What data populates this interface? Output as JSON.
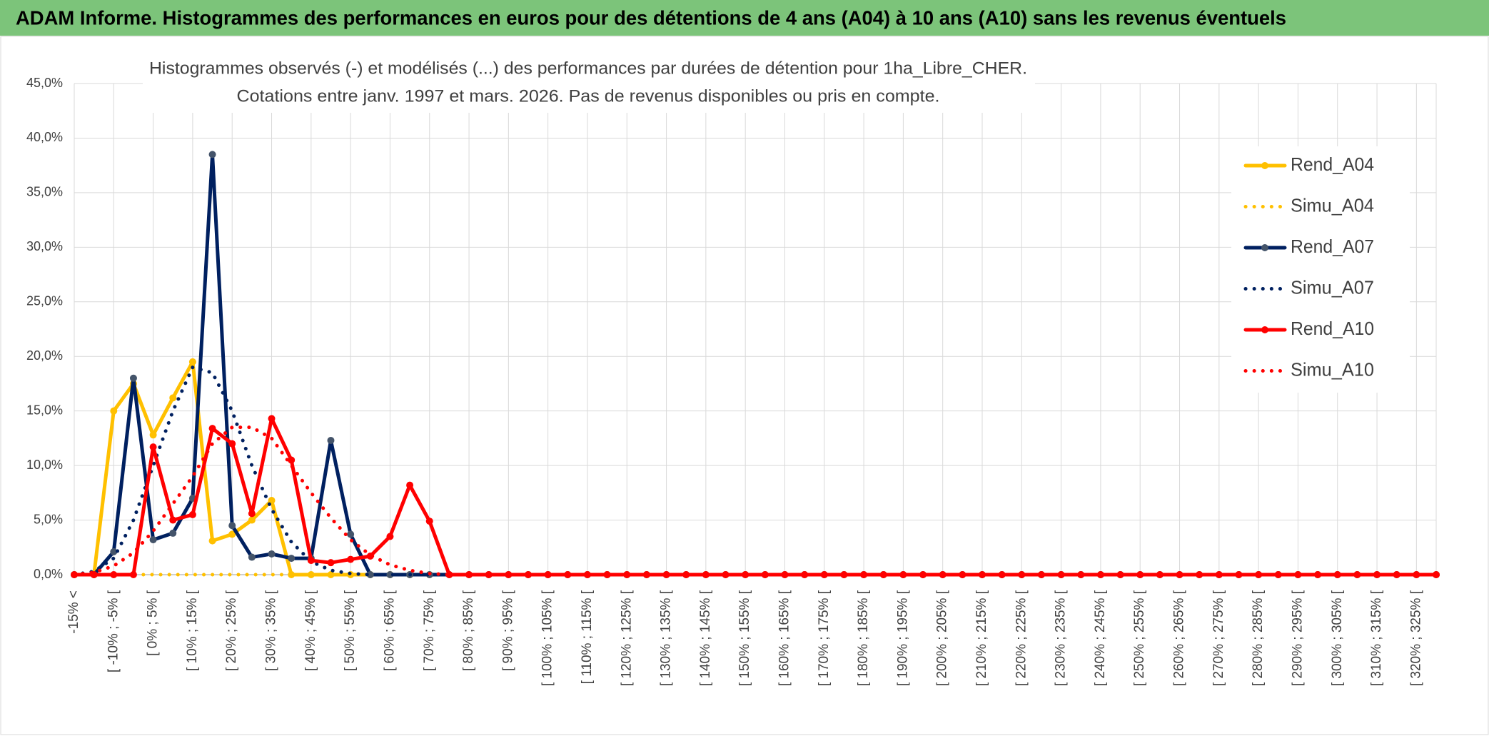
{
  "header": {
    "title": "ADAM Informe. Histogrammes des performances en euros pour des détentions de 4 ans (A04) à 10 ans (A10) sans les revenus éventuels"
  },
  "chart_data": {
    "type": "line",
    "title": "Histogrammes observés (-) et modélisés (...) des performances par durées de détention pour 1ha_Libre_CHER.",
    "subtitle": "Cotations entre janv. 1997 et mars. 2026. Pas de revenus disponibles ou pris en compte.",
    "categories": [
      "-15% <",
      null,
      "[ -10% ; -5% [",
      null,
      "[ 0% ; 5% [",
      null,
      "[ 10% ; 15% [",
      null,
      "[ 20% ; 25% [",
      null,
      "[ 30% ; 35% [",
      null,
      "[ 40% ; 45% [",
      null,
      "[ 50% ; 55% [",
      null,
      "[ 60% ; 65% [",
      null,
      "[ 70% ; 75% [",
      null,
      "[ 80% ; 85% [",
      null,
      "[ 90% ; 95% [",
      null,
      "[ 100% ; 105% [",
      null,
      "[ 110% ; 115% [",
      null,
      "[ 120% ; 125% [",
      null,
      "[ 130% ; 135% [",
      null,
      "[ 140% ; 145% [",
      null,
      "[ 150% ; 155% [",
      null,
      "[ 160% ; 165% [",
      null,
      "[ 170% ; 175% [",
      null,
      "[ 180% ; 185% [",
      null,
      "[ 190% ; 195% [",
      null,
      "[ 200% ; 205% [",
      null,
      "[ 210% ; 215% [",
      null,
      "[ 220% ; 225% [",
      null,
      "[ 230% ; 235% [",
      null,
      "[ 240% ; 245% [",
      null,
      "[ 250% ; 255% [",
      null,
      "[ 260% ; 265% [",
      null,
      "[ 270% ; 275% [",
      null,
      "[ 280% ; 285% [",
      null,
      "[ 290% ; 295% [",
      null,
      "[ 300% ; 305% [",
      null,
      "[ 310% ; 315% [",
      null,
      "[ 320% ; 325% [",
      null
    ],
    "series": [
      {
        "name": "Rend_A04",
        "color": "#ffc000",
        "style": "solid",
        "values": [
          0,
          0,
          15.0,
          17.5,
          12.8,
          16.2,
          19.5,
          3.1,
          3.7,
          5.0,
          6.8,
          0,
          0,
          0,
          0,
          0,
          0,
          0,
          0,
          0,
          0,
          0,
          0,
          0,
          0,
          0,
          0,
          0,
          0,
          0,
          0,
          0,
          0,
          0,
          0,
          0,
          0,
          0,
          0,
          0,
          0,
          0,
          0,
          0,
          0,
          0,
          0,
          0,
          0,
          0,
          0,
          0,
          0,
          0,
          0,
          0,
          0,
          0,
          0,
          0,
          0,
          0,
          0,
          0,
          0,
          0,
          0,
          0,
          0,
          0
        ]
      },
      {
        "name": "Simu_A04",
        "color": "#ffc000",
        "style": "dotted",
        "values": [
          0,
          0,
          0,
          0,
          0,
          0,
          0,
          0,
          0,
          0,
          0,
          0,
          0,
          0,
          0,
          0,
          0,
          0,
          0,
          0,
          0,
          0,
          0,
          0,
          0,
          0,
          0,
          0,
          0,
          0,
          0,
          0,
          0,
          0,
          0,
          0,
          0,
          0,
          0,
          0,
          0,
          0,
          0,
          0,
          0,
          0,
          0,
          0,
          0,
          0,
          0,
          0,
          0,
          0,
          0,
          0,
          0,
          0,
          0,
          0,
          0,
          0,
          0,
          0,
          0,
          0,
          0,
          0,
          0,
          0
        ]
      },
      {
        "name": "Rend_A07",
        "color": "#002060",
        "style": "solid",
        "values": [
          0,
          0,
          2.1,
          18.0,
          3.2,
          3.8,
          7.0,
          38.5,
          4.5,
          1.6,
          1.9,
          1.5,
          1.5,
          12.3,
          3.7,
          0,
          0,
          0,
          0,
          0,
          0,
          0,
          0,
          0,
          0,
          0,
          0,
          0,
          0,
          0,
          0,
          0,
          0,
          0,
          0,
          0,
          0,
          0,
          0,
          0,
          0,
          0,
          0,
          0,
          0,
          0,
          0,
          0,
          0,
          0,
          0,
          0,
          0,
          0,
          0,
          0,
          0,
          0,
          0,
          0,
          0,
          0,
          0,
          0,
          0,
          0,
          0,
          0,
          0,
          0
        ]
      },
      {
        "name": "Simu_A07",
        "color": "#002060",
        "style": "dotted",
        "values": [
          0,
          0.3,
          1.5,
          5,
          10,
          15,
          19,
          18.5,
          15,
          10,
          6,
          3,
          1.2,
          0.4,
          0.1,
          0,
          0,
          0,
          0,
          0,
          0,
          0,
          0,
          0,
          0,
          0,
          0,
          0,
          0,
          0,
          0,
          0,
          0,
          0,
          0,
          0,
          0,
          0,
          0,
          0,
          0,
          0,
          0,
          0,
          0,
          0,
          0,
          0,
          0,
          0,
          0,
          0,
          0,
          0,
          0,
          0,
          0,
          0,
          0,
          0,
          0,
          0,
          0,
          0,
          0,
          0,
          0,
          0,
          0,
          0
        ]
      },
      {
        "name": "Rend_A10",
        "color": "#ff0000",
        "style": "solid",
        "values": [
          0,
          0,
          0,
          0,
          11.7,
          5.0,
          5.5,
          13.4,
          12.0,
          5.6,
          14.3,
          10.5,
          1.3,
          1.1,
          1.4,
          1.7,
          3.5,
          8.2,
          4.9,
          0,
          0,
          0,
          0,
          0,
          0,
          0,
          0,
          0,
          0,
          0,
          0,
          0,
          0,
          0,
          0,
          0,
          0,
          0,
          0,
          0,
          0,
          0,
          0,
          0,
          0,
          0,
          0,
          0,
          0,
          0,
          0,
          0,
          0,
          0,
          0,
          0,
          0,
          0,
          0,
          0,
          0,
          0,
          0,
          0,
          0,
          0,
          0,
          0,
          0,
          0
        ]
      },
      {
        "name": "Simu_A10",
        "color": "#ff0000",
        "style": "dotted",
        "values": [
          0,
          0.2,
          0.8,
          2,
          4,
          6.5,
          9,
          12,
          13.5,
          13.5,
          12.5,
          10,
          7.5,
          5.2,
          3.2,
          1.8,
          0.9,
          0.4,
          0.1,
          0,
          0,
          0,
          0,
          0,
          0,
          0,
          0,
          0,
          0,
          0,
          0,
          0,
          0,
          0,
          0,
          0,
          0,
          0,
          0,
          0,
          0,
          0,
          0,
          0,
          0,
          0,
          0,
          0,
          0,
          0,
          0,
          0,
          0,
          0,
          0,
          0,
          0,
          0,
          0,
          0,
          0,
          0,
          0,
          0,
          0,
          0,
          0,
          0,
          0,
          0
        ]
      }
    ],
    "ylim": [
      0,
      45
    ],
    "yticks": [
      {
        "value": 0,
        "label": "0,0%"
      },
      {
        "value": 5,
        "label": "5,0%"
      },
      {
        "value": 10,
        "label": "10,0%"
      },
      {
        "value": 15,
        "label": "15,0%"
      },
      {
        "value": 20,
        "label": "20,0%"
      },
      {
        "value": 25,
        "label": "25,0%"
      },
      {
        "value": 30,
        "label": "30,0%"
      },
      {
        "value": 35,
        "label": "35,0%"
      },
      {
        "value": 40,
        "label": "40,0%"
      },
      {
        "value": 45,
        "label": "45,0%"
      }
    ],
    "grid": true,
    "legend": "right"
  }
}
